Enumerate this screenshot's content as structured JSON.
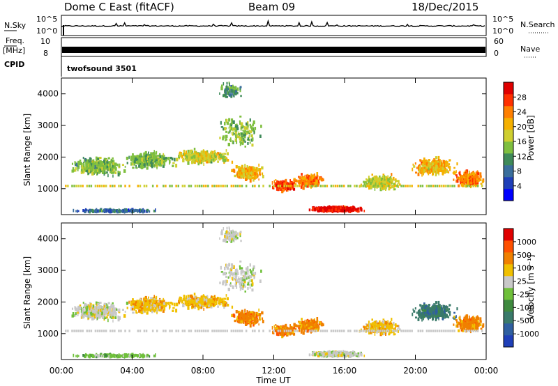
{
  "header": {
    "station": "Dome C East (fitACF)",
    "beam": "Beam 09",
    "date": "18/Dec/2015"
  },
  "panels": {
    "nsky_label": "N.Sky",
    "nsearch_label": "N.Search",
    "freq_label": "Freq.",
    "freq_unit": "[MHz]",
    "nave_label": "Nave",
    "cpid_label": "CPID",
    "cpid_value": "twofsound 3501",
    "nsky_ticks": [
      "10^5",
      "10^0"
    ],
    "freq_ticks": [
      "10",
      "8"
    ],
    "nave_ticks": [
      "60",
      "0"
    ]
  },
  "chart_data": [
    {
      "type": "heatmap",
      "name": "power-plot",
      "ylabel": "Slant Range [km]",
      "yticks": [
        1000,
        2000,
        3000,
        4000
      ],
      "ylim": [
        180,
        4500
      ],
      "xlim": [
        0,
        24
      ],
      "colorbar_label": "Power [dB]",
      "colorbar_ticks": [
        "28",
        "24",
        "20",
        "16",
        "12",
        "8",
        "4"
      ],
      "colorbar_colors": [
        "#0000ff",
        "#1f3fb8",
        "#3a6e9c",
        "#3f8a5a",
        "#7fbf3f",
        "#cfcf30",
        "#f5b000",
        "#ff7f00",
        "#ff3000",
        "#e00000"
      ]
    },
    {
      "type": "heatmap",
      "name": "velocity-plot",
      "ylabel": "Slant Range [km]",
      "yticks": [
        1000,
        2000,
        3000,
        4000
      ],
      "ylim": [
        180,
        4500
      ],
      "xlabel": "Time UT",
      "xticks": [
        "00:00",
        "04:00",
        "08:00",
        "12:00",
        "16:00",
        "20:00",
        "00:00"
      ],
      "xlim": [
        0,
        24
      ],
      "colorbar_label": "Velocity [m s⁻¹]",
      "colorbar_ticks": [
        "1000",
        "500",
        "100",
        "25",
        "-25",
        "-100",
        "-500",
        "-1000"
      ],
      "colorbar_colors": [
        "#1f3fb8",
        "#2f5fa0",
        "#3a7a6a",
        "#3f8a3f",
        "#6fc03a",
        "#c8c8c8",
        "#f0c000",
        "#f08000",
        "#ff5000",
        "#e00000"
      ]
    }
  ]
}
